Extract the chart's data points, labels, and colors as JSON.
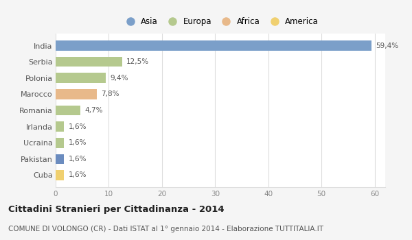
{
  "categories": [
    "India",
    "Serbia",
    "Polonia",
    "Marocco",
    "Romania",
    "Irlanda",
    "Ucraina",
    "Pakistan",
    "Cuba"
  ],
  "values": [
    59.4,
    12.5,
    9.4,
    7.8,
    4.7,
    1.6,
    1.6,
    1.6,
    1.6
  ],
  "labels": [
    "59,4%",
    "12,5%",
    "9,4%",
    "7,8%",
    "4,7%",
    "1,6%",
    "1,6%",
    "1,6%",
    "1,6%"
  ],
  "colors": [
    "#7b9fc9",
    "#b5c98e",
    "#b5c98e",
    "#e8b98a",
    "#b5c98e",
    "#b5c98e",
    "#b5c98e",
    "#6b8cbf",
    "#f0d070"
  ],
  "legend_labels": [
    "Asia",
    "Europa",
    "Africa",
    "America"
  ],
  "legend_colors": [
    "#7b9fc9",
    "#b5c98e",
    "#e8b98a",
    "#f0d070"
  ],
  "title": "Cittadini Stranieri per Cittadinanza - 2014",
  "subtitle": "COMUNE DI VOLONGO (CR) - Dati ISTAT al 1° gennaio 2014 - Elaborazione TUTTITALIA.IT",
  "xlim": [
    0,
    62
  ],
  "xticks": [
    0,
    10,
    20,
    30,
    40,
    50,
    60
  ],
  "background_color": "#f5f5f5",
  "bar_background": "#ffffff",
  "grid_color": "#dddddd"
}
